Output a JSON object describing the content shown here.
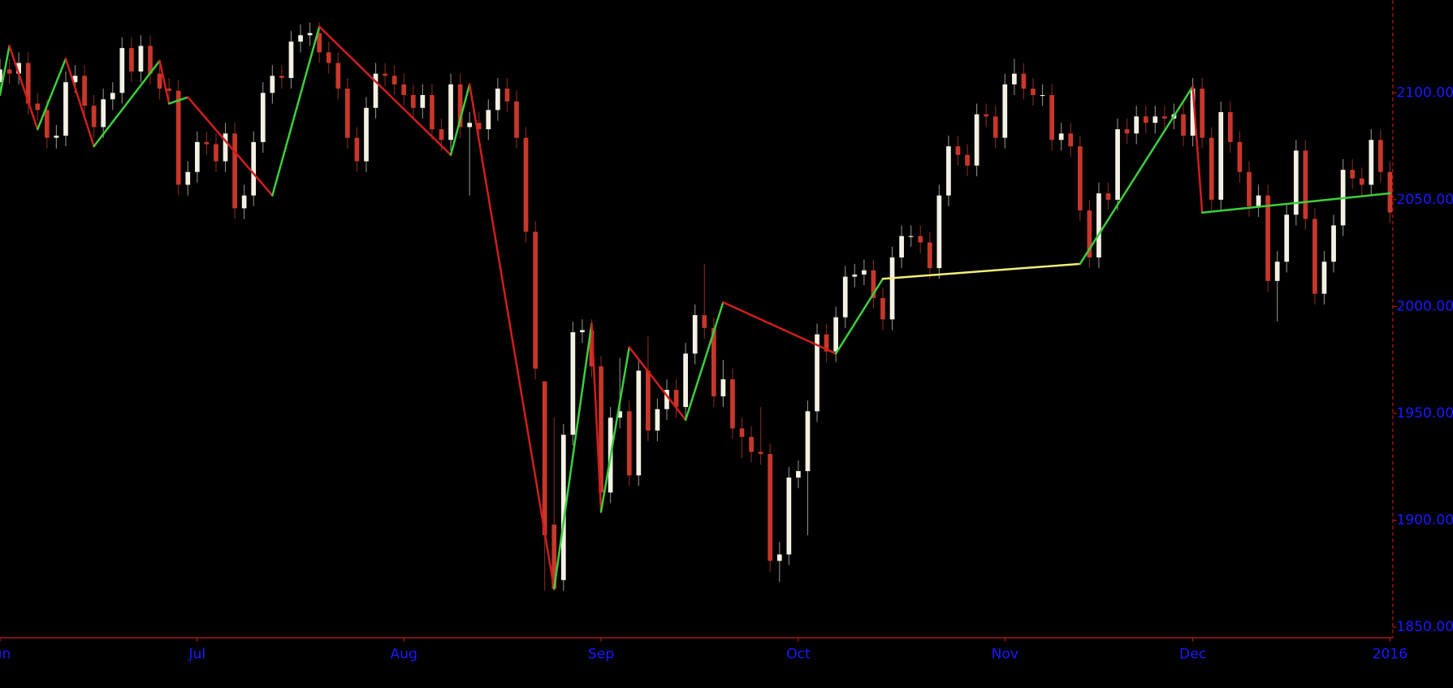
{
  "chart_data": {
    "type": "candlestick",
    "categories": [
      "Jun",
      null,
      null,
      null,
      null,
      null,
      null,
      null,
      null,
      null,
      null,
      null,
      null,
      null,
      null,
      null,
      null,
      null,
      null,
      null,
      null,
      "Jul",
      null,
      null,
      null,
      null,
      null,
      null,
      null,
      null,
      null,
      null,
      null,
      null,
      null,
      null,
      null,
      null,
      null,
      null,
      null,
      null,
      null,
      "Aug",
      null,
      null,
      null,
      null,
      null,
      null,
      null,
      null,
      null,
      null,
      null,
      null,
      null,
      null,
      null,
      null,
      null,
      null,
      null,
      null,
      "Sep",
      null,
      null,
      null,
      null,
      null,
      null,
      null,
      null,
      null,
      null,
      null,
      null,
      null,
      null,
      null,
      null,
      null,
      null,
      null,
      null,
      "Oct",
      null,
      null,
      null,
      null,
      null,
      null,
      null,
      null,
      null,
      null,
      null,
      null,
      null,
      null,
      null,
      null,
      null,
      null,
      null,
      null,
      null,
      "Nov",
      null,
      null,
      null,
      null,
      null,
      null,
      null,
      null,
      null,
      null,
      null,
      null,
      null,
      null,
      null,
      null,
      null,
      null,
      null,
      "Dec",
      null,
      null,
      null,
      null,
      null,
      null,
      null,
      null,
      null,
      null,
      null,
      null,
      null,
      null,
      null,
      null,
      null,
      null,
      null,
      null,
      "2016"
    ],
    "open": [
      2105,
      2111,
      2109,
      2114,
      2095,
      2092,
      2079,
      2080,
      2105,
      2108,
      2094,
      2084,
      2097,
      2100,
      2121,
      2110,
      2122,
      2109,
      2102,
      2101,
      2057,
      2063,
      2077,
      2076,
      2068,
      2081,
      2046,
      2052,
      2077,
      2100,
      2108,
      2107,
      2124,
      2127,
      2128,
      2119,
      2114,
      2102,
      2079,
      2068,
      2093,
      2109,
      2108,
      2104,
      2099,
      2093,
      2099,
      2083,
      2078,
      2104,
      2084,
      2086,
      2083,
      2092,
      2102,
      2096,
      2079,
      2035,
      1965,
      1898,
      1872,
      1940,
      1988,
      1989,
      1972,
      1913,
      1948,
      1951,
      1921,
      1970,
      1942,
      1952,
      1961,
      1953,
      1978,
      1996,
      1990,
      1958,
      1966,
      1943,
      1939,
      1932,
      1931,
      1881,
      1884,
      1920,
      1923,
      1951,
      1987,
      1979,
      1995,
      2014,
      2015,
      2017,
      2004,
      1994,
      2023,
      2033,
      2033,
      2030,
      2018,
      2052,
      2075,
      2071,
      2066,
      2090,
      2089,
      2079,
      2104,
      2109,
      2102,
      2099,
      2099,
      2078,
      2081,
      2075,
      2045,
      2023,
      2053,
      2050,
      2083,
      2081,
      2089,
      2086,
      2089,
      2088,
      2090,
      2080,
      2102,
      2079,
      2050,
      2091,
      2077,
      2063,
      2047,
      2052,
      2012,
      2021,
      2043,
      2073,
      2041,
      2006,
      2021,
      2038,
      2064,
      2060,
      2057,
      2078,
      2063
    ],
    "high": [
      2116,
      2116,
      2119,
      2119,
      2100,
      2097,
      2085,
      2110,
      2113,
      2113,
      2099,
      2102,
      2105,
      2126,
      2126,
      2127,
      2127,
      2114,
      2107,
      2106,
      2068,
      2082,
      2082,
      2081,
      2086,
      2086,
      2057,
      2082,
      2105,
      2113,
      2113,
      2129,
      2132,
      2133,
      2133,
      2124,
      2119,
      2107,
      2084,
      2098,
      2114,
      2114,
      2113,
      2109,
      2104,
      2104,
      2104,
      2088,
      2109,
      2109,
      2091,
      2091,
      2097,
      2107,
      2107,
      2101,
      2084,
      2040,
      1965,
      1948,
      1945,
      1993,
      1994,
      1994,
      1977,
      1953,
      1976,
      1956,
      1975,
      1986,
      1957,
      1966,
      1966,
      1983,
      2001,
      2020,
      1995,
      1975,
      1971,
      1948,
      1944,
      1953,
      1936,
      1890,
      1925,
      1928,
      1956,
      1992,
      1992,
      2000,
      2019,
      2020,
      2022,
      2022,
      2009,
      2028,
      2038,
      2038,
      2038,
      2035,
      2057,
      2080,
      2080,
      2076,
      2095,
      2095,
      2094,
      2109,
      2116,
      2114,
      2107,
      2104,
      2104,
      2086,
      2086,
      2080,
      2050,
      2058,
      2058,
      2088,
      2088,
      2094,
      2094,
      2094,
      2094,
      2095,
      2095,
      2107,
      2107,
      2084,
      2096,
      2096,
      2082,
      2068,
      2057,
      2057,
      2026,
      2048,
      2078,
      2078,
      2046,
      2026,
      2043,
      2069,
      2069,
      2065,
      2083,
      2083,
      2068
    ],
    "low": [
      2100,
      2104,
      2104,
      2090,
      2087,
      2074,
      2074,
      2075,
      2100,
      2089,
      2079,
      2079,
      2092,
      2095,
      2105,
      2105,
      2104,
      2097,
      2096,
      2052,
      2052,
      2058,
      2071,
      2063,
      2063,
      2041,
      2041,
      2047,
      2072,
      2095,
      2102,
      2102,
      2119,
      2122,
      2114,
      2109,
      2097,
      2074,
      2063,
      2063,
      2088,
      2103,
      2099,
      2094,
      2088,
      2088,
      2078,
      2073,
      2073,
      2079,
      2052,
      2078,
      2078,
      2087,
      2091,
      2074,
      2030,
      1966,
      1867,
      1867,
      1867,
      1935,
      1983,
      1967,
      1903,
      1908,
      1943,
      1916,
      1916,
      1937,
      1937,
      1947,
      1948,
      1948,
      1973,
      1985,
      1953,
      1953,
      1938,
      1929,
      1927,
      1926,
      1876,
      1871,
      1879,
      1915,
      1893,
      1946,
      1974,
      1974,
      1990,
      2009,
      2010,
      1999,
      1989,
      1989,
      2018,
      2028,
      2025,
      2013,
      2013,
      2047,
      2066,
      2061,
      2061,
      2084,
      2074,
      2074,
      2099,
      2097,
      2094,
      2094,
      2073,
      2073,
      2070,
      2040,
      2018,
      2018,
      2045,
      2045,
      2076,
      2076,
      2081,
      2081,
      2083,
      2083,
      2075,
      2075,
      2074,
      2045,
      2045,
      2072,
      2058,
      2042,
      2042,
      2007,
      1993,
      2016,
      2038,
      2036,
      2001,
      2001,
      2016,
      2033,
      2055,
      2052,
      2052,
      2058,
      2039
    ],
    "close": [
      2111,
      2109,
      2114,
      2095,
      2092,
      2079,
      2080,
      2105,
      2108,
      2094,
      2084,
      2097,
      2100,
      2121,
      2110,
      2122,
      2109,
      2102,
      2101,
      2057,
      2063,
      2077,
      2076,
      2068,
      2081,
      2046,
      2052,
      2077,
      2100,
      2108,
      2107,
      2124,
      2127,
      2128,
      2119,
      2114,
      2102,
      2079,
      2068,
      2093,
      2109,
      2108,
      2104,
      2099,
      2093,
      2099,
      2083,
      2078,
      2104,
      2084,
      2086,
      2083,
      2092,
      2102,
      2096,
      2079,
      2035,
      1971,
      1893,
      1868,
      1940,
      1988,
      1989,
      1972,
      1913,
      1948,
      1951,
      1921,
      1970,
      1942,
      1952,
      1961,
      1953,
      1978,
      1996,
      1990,
      1958,
      1966,
      1943,
      1939,
      1932,
      1931,
      1881,
      1884,
      1920,
      1923,
      1951,
      1987,
      1979,
      1995,
      2014,
      2015,
      2017,
      2004,
      1994,
      2023,
      2033,
      2033,
      2030,
      2018,
      2052,
      2075,
      2071,
      2066,
      2090,
      2089,
      2079,
      2104,
      2109,
      2102,
      2099,
      2099,
      2078,
      2081,
      2075,
      2045,
      2023,
      2053,
      2050,
      2083,
      2081,
      2089,
      2086,
      2089,
      2088,
      2090,
      2080,
      2102,
      2079,
      2050,
      2091,
      2077,
      2063,
      2047,
      2052,
      2012,
      2021,
      2043,
      2073,
      2041,
      2006,
      2021,
      2038,
      2064,
      2060,
      2057,
      2078,
      2063,
      2044
    ],
    "up_color": "#f4f1e4",
    "down_color": "#c8372a",
    "ylim": [
      1845,
      2143.4
    ],
    "yticks": [
      {
        "value": 1850,
        "label": "1850.00"
      },
      {
        "value": 1900,
        "label": "1900.00"
      },
      {
        "value": 1950,
        "label": "1950.00"
      },
      {
        "value": 2000,
        "label": "2000.00"
      },
      {
        "value": 2050,
        "label": "2050.00"
      },
      {
        "value": 2100,
        "label": "2100.00"
      }
    ],
    "zigzag": {
      "x": [
        0,
        1,
        4,
        7,
        10,
        17,
        18,
        20,
        29,
        34,
        48,
        50,
        59,
        63,
        64,
        67,
        73,
        77,
        89,
        94,
        115,
        127,
        128,
        148
      ],
      "values": [
        2099,
        2122,
        2083,
        2116,
        2075,
        2115,
        2095,
        2098,
        2052,
        2131,
        2071,
        2104,
        1868,
        1992,
        1904,
        1981,
        1947,
        2002,
        1978,
        2013,
        2020,
        2103,
        2044,
        2053
      ],
      "colors": [
        "#3ccf3c",
        "#d01e1e",
        "#3ccf3c",
        "#d01e1e",
        "#3ccf3c",
        "#d01e1e",
        "#3ccf3c",
        "#d01e1e",
        "#3ccf3c",
        "#d01e1e",
        "#3ccf3c",
        "#d01e1e",
        "#3ccf3c",
        "#d01e1e",
        "#3ccf3c",
        "#d01e1e",
        "#3ccf3c",
        "#d01e1e",
        "#3ccf3c",
        "#f2f07a",
        "#3ccf3c",
        "#d01e1e",
        "#3ccf3c"
      ]
    }
  }
}
